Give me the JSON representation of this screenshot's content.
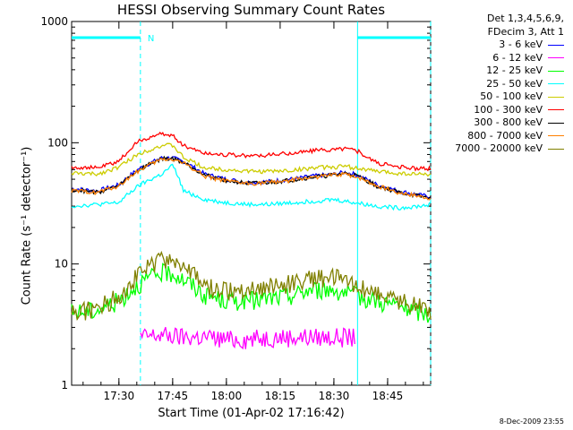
{
  "chart_data": {
    "type": "line",
    "title": "HESSI Observing Summary Count Rates",
    "xlabel": "Start Time (01-Apr-02 17:16:42)",
    "ylabel": "Count Rate (s⁻¹ detector⁻¹)",
    "yscale": "log",
    "ylim": [
      1,
      1000
    ],
    "ytick_labels": [
      "1",
      "10",
      "100",
      "1000"
    ],
    "xlim_minutes": [
      17.28,
      18.95
    ],
    "xtick_labels": [
      "17:30",
      "17:45",
      "18:00",
      "18:15",
      "18:30",
      "18:45"
    ],
    "legend_header": [
      "Det 1,3,4,5,6,9,",
      "FDecim 3, Att 1"
    ],
    "series": [
      {
        "name": "3 - 6 keV",
        "color": "#0000ff",
        "x": [
          17.28,
          17.4,
          17.5,
          17.6,
          17.7,
          17.75,
          17.8,
          17.9,
          18.0,
          18.1,
          18.2,
          18.3,
          18.4,
          18.5,
          18.55,
          18.6,
          18.7,
          18.8,
          18.9,
          18.95
        ],
        "y": [
          42,
          40,
          45,
          62,
          75,
          75,
          70,
          55,
          50,
          47,
          48,
          50,
          53,
          55,
          57,
          55,
          45,
          40,
          37,
          36
        ]
      },
      {
        "name": "6 - 12 keV",
        "color": "#ff00ff",
        "x": [
          17.28,
          17.4,
          17.5,
          17.6,
          17.7,
          17.8,
          17.9,
          18.0,
          18.1,
          18.2,
          18.3,
          18.4,
          18.5,
          18.6,
          18.7,
          18.8,
          18.9,
          18.95
        ],
        "y": [
          null,
          null,
          null,
          2.5,
          2.6,
          2.5,
          2.5,
          2.4,
          2.4,
          2.5,
          2.5,
          2.5,
          2.5,
          2.5,
          null,
          null,
          null,
          null
        ]
      },
      {
        "name": "12 - 25 keV",
        "color": "#00ff00",
        "x": [
          17.28,
          17.4,
          17.5,
          17.6,
          17.7,
          17.75,
          17.8,
          17.9,
          18.0,
          18.1,
          18.2,
          18.3,
          18.4,
          18.5,
          18.55,
          18.6,
          18.7,
          18.8,
          18.9,
          18.95
        ],
        "y": [
          4,
          4.2,
          5,
          7,
          8.5,
          8.5,
          7.5,
          5.5,
          5,
          5,
          5.2,
          5.5,
          6.2,
          6.2,
          5.8,
          5.5,
          5,
          4.5,
          4,
          3.8
        ]
      },
      {
        "name": "25 - 50 keV",
        "color": "#00ffff",
        "x": [
          17.28,
          17.4,
          17.5,
          17.6,
          17.7,
          17.75,
          17.8,
          17.9,
          18.0,
          18.1,
          18.2,
          18.3,
          18.4,
          18.5,
          18.55,
          18.6,
          18.7,
          18.8,
          18.9,
          18.95
        ],
        "y": [
          30,
          31,
          32,
          45,
          55,
          65,
          40,
          34,
          32,
          31,
          31,
          32,
          33,
          34,
          33,
          32,
          30,
          29,
          30,
          31
        ]
      },
      {
        "name": "50 - 100 keV",
        "color": "#cccc00",
        "x": [
          17.28,
          17.4,
          17.5,
          17.6,
          17.7,
          17.75,
          17.8,
          17.9,
          18.0,
          18.1,
          18.2,
          18.3,
          18.4,
          18.5,
          18.55,
          18.6,
          18.7,
          18.8,
          18.9,
          18.95
        ],
        "y": [
          56,
          55,
          63,
          82,
          95,
          95,
          75,
          62,
          60,
          58,
          58,
          59,
          62,
          63,
          64,
          62,
          58,
          56,
          55,
          55
        ]
      },
      {
        "name": "100 - 300 keV",
        "color": "#ff0000",
        "x": [
          17.28,
          17.4,
          17.5,
          17.6,
          17.7,
          17.75,
          17.8,
          17.9,
          18.0,
          18.1,
          18.2,
          18.3,
          18.4,
          18.5,
          18.55,
          18.6,
          18.7,
          18.8,
          18.9,
          18.95
        ],
        "y": [
          63,
          62,
          70,
          105,
          118,
          115,
          95,
          82,
          80,
          78,
          79,
          82,
          86,
          88,
          90,
          87,
          68,
          63,
          61,
          61
        ]
      },
      {
        "name": "300 - 800 keV",
        "color": "#000000",
        "x": [
          17.28,
          17.4,
          17.5,
          17.6,
          17.7,
          17.75,
          17.8,
          17.9,
          18.0,
          18.1,
          18.2,
          18.3,
          18.4,
          18.5,
          18.55,
          18.6,
          18.7,
          18.8,
          18.9,
          18.95
        ],
        "y": [
          41,
          39,
          44,
          61,
          74,
          74,
          69,
          54,
          49,
          46,
          47,
          49,
          52,
          54,
          56,
          54,
          44,
          39,
          36,
          35
        ]
      },
      {
        "name": "800 - 7000 keV",
        "color": "#ff8000",
        "x": [
          17.28,
          17.4,
          17.5,
          17.6,
          17.7,
          17.75,
          17.8,
          17.9,
          18.0,
          18.1,
          18.2,
          18.3,
          18.4,
          18.5,
          18.55,
          18.6,
          18.7,
          18.8,
          18.9,
          18.95
        ],
        "y": [
          40,
          39,
          44,
          60,
          73,
          73,
          68,
          53,
          48,
          46,
          47,
          49,
          52,
          54,
          55,
          53,
          44,
          39,
          36,
          35
        ]
      },
      {
        "name": "7000 - 20000 keV",
        "color": "#808000",
        "x": [
          17.28,
          17.4,
          17.5,
          17.6,
          17.7,
          17.75,
          17.8,
          17.9,
          18.0,
          18.1,
          18.2,
          18.3,
          18.4,
          18.5,
          18.55,
          18.6,
          18.7,
          18.8,
          18.9,
          18.95
        ],
        "y": [
          4,
          4.3,
          5.5,
          8.5,
          11,
          11,
          9.5,
          6.5,
          6,
          6.2,
          6.5,
          7,
          7.8,
          7.8,
          7.2,
          6.8,
          5.8,
          5,
          4.5,
          4.2
        ]
      }
    ],
    "annotations": {
      "marker_letter": "N",
      "vertical_markers_minutes": [
        17.6,
        18.61,
        18.95
      ],
      "dashed_markers_minutes": [
        17.6,
        18.95
      ]
    }
  },
  "footer_stamp": "8-Dec-2009 23:55"
}
